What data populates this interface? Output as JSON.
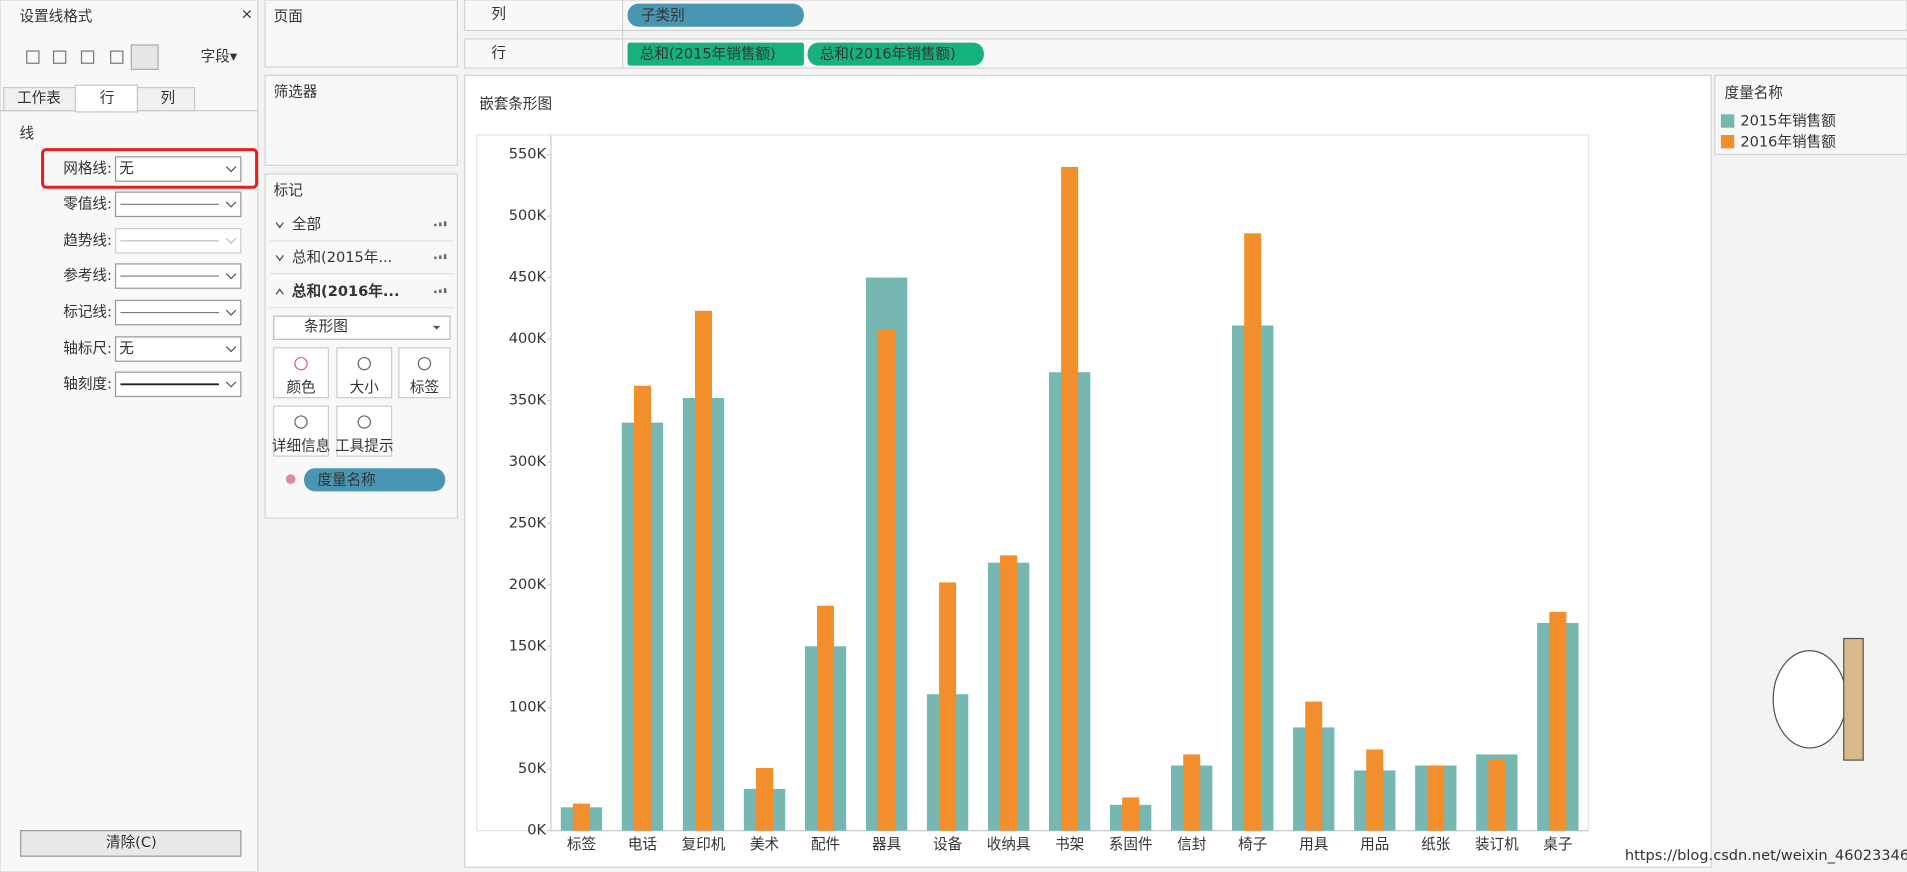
{
  "ui": {
    "format_panel": {
      "title": "设置线格式",
      "close": "×",
      "fields": "字段▾",
      "tabs": [
        "工作表",
        "行",
        "列"
      ],
      "section": "线",
      "rows": [
        {
          "label": "网格线:",
          "value": "无"
        },
        {
          "label": "零值线:"
        },
        {
          "label": "趋势线:"
        },
        {
          "label": "参考线:"
        },
        {
          "label": "标记线:"
        },
        {
          "label": "轴标尺:",
          "value": "无"
        },
        {
          "label": "轴刻度:"
        }
      ],
      "clear_button": "清除(C)"
    },
    "pages": "页面",
    "filters": "筛选器",
    "marks": {
      "title": "标记",
      "items": [
        "全部",
        "总和(2015年...",
        "总和(2016年..."
      ],
      "mark_type": "条形图",
      "buttons": [
        "颜色",
        "大小",
        "标签",
        "详细信息",
        "工具提示"
      ],
      "pill": "度量名称"
    },
    "columns_shelf": {
      "label": "列",
      "pills": [
        "子类别"
      ]
    },
    "rows_shelf": {
      "label": "行",
      "pills": [
        "总和(2015年销售额)",
        "总和(2016年销售额)"
      ]
    },
    "legend_title": "度量名称",
    "watermark": "https://blog.csdn.net/weixin_46023346"
  },
  "chart_data": {
    "type": "bar",
    "title": "嵌套条形图",
    "categories": [
      "标签",
      "电话",
      "复印机",
      "美术",
      "配件",
      "器具",
      "设备",
      "收纳具",
      "书架",
      "系固件",
      "信封",
      "椅子",
      "用具",
      "用品",
      "纸张",
      "装订机",
      "桌子"
    ],
    "series": [
      {
        "name": "2015年销售额",
        "color": "#76b7b2",
        "values": [
          19000,
          332000,
          352000,
          34000,
          150000,
          450000,
          111000,
          218000,
          373000,
          21000,
          53000,
          411000,
          84000,
          49000,
          53000,
          62000,
          169000
        ]
      },
      {
        "name": "2016年销售额",
        "color": "#f28e2b",
        "values": [
          22000,
          362000,
          423000,
          51000,
          183000,
          408000,
          202000,
          224000,
          540000,
          27000,
          62000,
          486000,
          105000,
          66000,
          53000,
          58000,
          178000
        ]
      }
    ],
    "ylim": [
      0,
      566000
    ],
    "yticks": [
      {
        "value": 0,
        "label": "0K"
      },
      {
        "value": 50000,
        "label": "50K"
      },
      {
        "value": 100000,
        "label": "100K"
      },
      {
        "value": 150000,
        "label": "150K"
      },
      {
        "value": 200000,
        "label": "200K"
      },
      {
        "value": 250000,
        "label": "250K"
      },
      {
        "value": 300000,
        "label": "300K"
      },
      {
        "value": 350000,
        "label": "350K"
      },
      {
        "value": 400000,
        "label": "400K"
      },
      {
        "value": 450000,
        "label": "450K"
      },
      {
        "value": 500000,
        "label": "500K"
      },
      {
        "value": 550000,
        "label": "550K"
      }
    ],
    "grid": false
  }
}
